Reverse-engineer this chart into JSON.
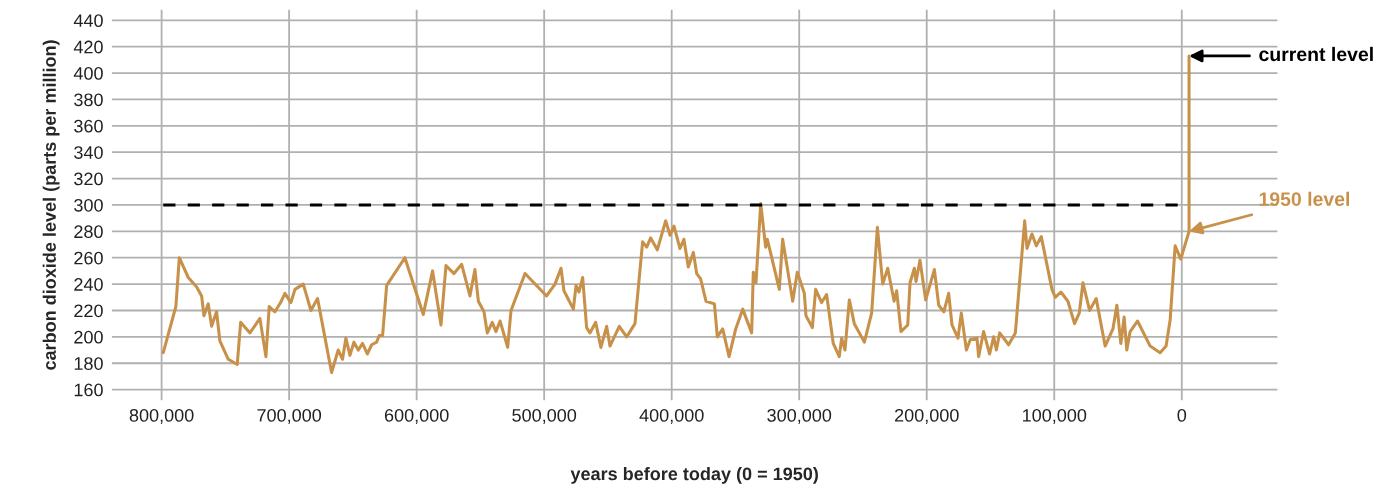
{
  "chart_data": {
    "type": "line",
    "xlabel": "years before today (0 = 1950)",
    "ylabel": "carbon dioxide level (parts per million)",
    "x": [
      798700,
      788800,
      786100,
      779100,
      772600,
      768600,
      766800,
      763400,
      760800,
      756900,
      754300,
      747700,
      740700,
      738000,
      730700,
      722900,
      718200,
      715600,
      711100,
      706700,
      703300,
      698600,
      695400,
      688900,
      682900,
      677700,
      666700,
      661500,
      658100,
      655500,
      652300,
      649200,
      645800,
      642400,
      638700,
      635300,
      631400,
      629300,
      626700,
      623500,
      609200,
      594800,
      587500,
      580900,
      577000,
      570700,
      564700,
      558200,
      554300,
      551600,
      547200,
      544600,
      540700,
      537800,
      534600,
      528600,
      526000,
      515000,
      498100,
      491500,
      486800,
      484500,
      477100,
      475000,
      472700,
      469800,
      466700,
      464100,
      459600,
      455500,
      451000,
      448400,
      441100,
      435300,
      428800,
      422800,
      419600,
      416500,
      411300,
      404700,
      401300,
      398200,
      393500,
      390400,
      387000,
      383000,
      380400,
      377300,
      373100,
      366500,
      364200,
      360000,
      355000,
      349800,
      344300,
      337300,
      336000,
      333900,
      330200,
      326300,
      325000,
      315600,
      313000,
      305100,
      301500,
      296000,
      294700,
      289700,
      287100,
      282400,
      278500,
      273300,
      268600,
      266700,
      264100,
      260700,
      256800,
      248900,
      243200,
      238700,
      234500,
      230600,
      225600,
      223600,
      220200,
      214900,
      213100,
      209700,
      208400,
      205300,
      200800,
      194000,
      190600,
      186600,
      182800,
      180200,
      175500,
      172900,
      168900,
      165800,
      160600,
      159300,
      155400,
      150700,
      147500,
      145400,
      142800,
      135800,
      130500,
      123200,
      121400,
      117500,
      114100,
      110200,
      101800,
      99200,
      94800,
      89300,
      84100,
      80400,
      77500,
      72300,
      67100,
      60100,
      54000,
      50900,
      47800,
      45200,
      43100,
      40500,
      34700,
      24800,
      17000,
      12300,
      9100,
      5200,
      800,
      -5700,
      -5700
    ],
    "series": [
      {
        "color": "#c8914a",
        "values": [
          188,
          223,
          260,
          245,
          238,
          231,
          216,
          225,
          208,
          219,
          197,
          183,
          179,
          211,
          203,
          214,
          185,
          223,
          219,
          226,
          233,
          226,
          236,
          240,
          220,
          229,
          173,
          190,
          183,
          199,
          186,
          196,
          190,
          195,
          187,
          194,
          196,
          201,
          201,
          239,
          260,
          217,
          250,
          209,
          254,
          248,
          255,
          231,
          251,
          227,
          219,
          203,
          211,
          204,
          212,
          192,
          220,
          248,
          231,
          240,
          252,
          235,
          221,
          239,
          234,
          245,
          207,
          203,
          211,
          192,
          208,
          193,
          208,
          200,
          210,
          272,
          268,
          275,
          266,
          288,
          277,
          284,
          267,
          274,
          253,
          264,
          248,
          244,
          227,
          225,
          200,
          206,
          185,
          206,
          221,
          203,
          249,
          241,
          301,
          268,
          274,
          236,
          274,
          227,
          249,
          233,
          216,
          207,
          236,
          226,
          232,
          195,
          185,
          199,
          190,
          228,
          210,
          196,
          218,
          283,
          240,
          252,
          227,
          235,
          204,
          209,
          241,
          252,
          242,
          258,
          228,
          251,
          224,
          219,
          233,
          209,
          199,
          218,
          190,
          198,
          199,
          185,
          204,
          187,
          200,
          190,
          203,
          194,
          203,
          288,
          267,
          278,
          269,
          276,
          236,
          230,
          234,
          227,
          210,
          218,
          241,
          220,
          229,
          193,
          206,
          224,
          195,
          215,
          190,
          204,
          212,
          193,
          188,
          193,
          213,
          269,
          259,
          280,
          413
        ]
      }
    ],
    "xlim": [
      839000,
      -75000
    ],
    "ylim": [
      152,
      448
    ],
    "xticks": [
      {
        "value": 800000,
        "label": "800,000"
      },
      {
        "value": 700000,
        "label": "700,000"
      },
      {
        "value": 600000,
        "label": "600,000"
      },
      {
        "value": 500000,
        "label": "500,000"
      },
      {
        "value": 400000,
        "label": "400,000"
      },
      {
        "value": 300000,
        "label": "300,000"
      },
      {
        "value": 200000,
        "label": "200,000"
      },
      {
        "value": 100000,
        "label": "100,000"
      },
      0
    ],
    "yticks": [
      160,
      180,
      200,
      220,
      240,
      260,
      280,
      300,
      320,
      340,
      360,
      380,
      400,
      420,
      440
    ],
    "grid": true,
    "marker": "none",
    "line_style": "solid",
    "ref_lines": [
      {
        "axis": "y",
        "value": 300,
        "color": "#000000",
        "line_style": "dashed"
      }
    ],
    "annotations": [
      {
        "text": "current level",
        "x": -5700,
        "y": 413
      },
      {
        "text": "1950 level",
        "x": -5700,
        "y": 280
      }
    ]
  }
}
